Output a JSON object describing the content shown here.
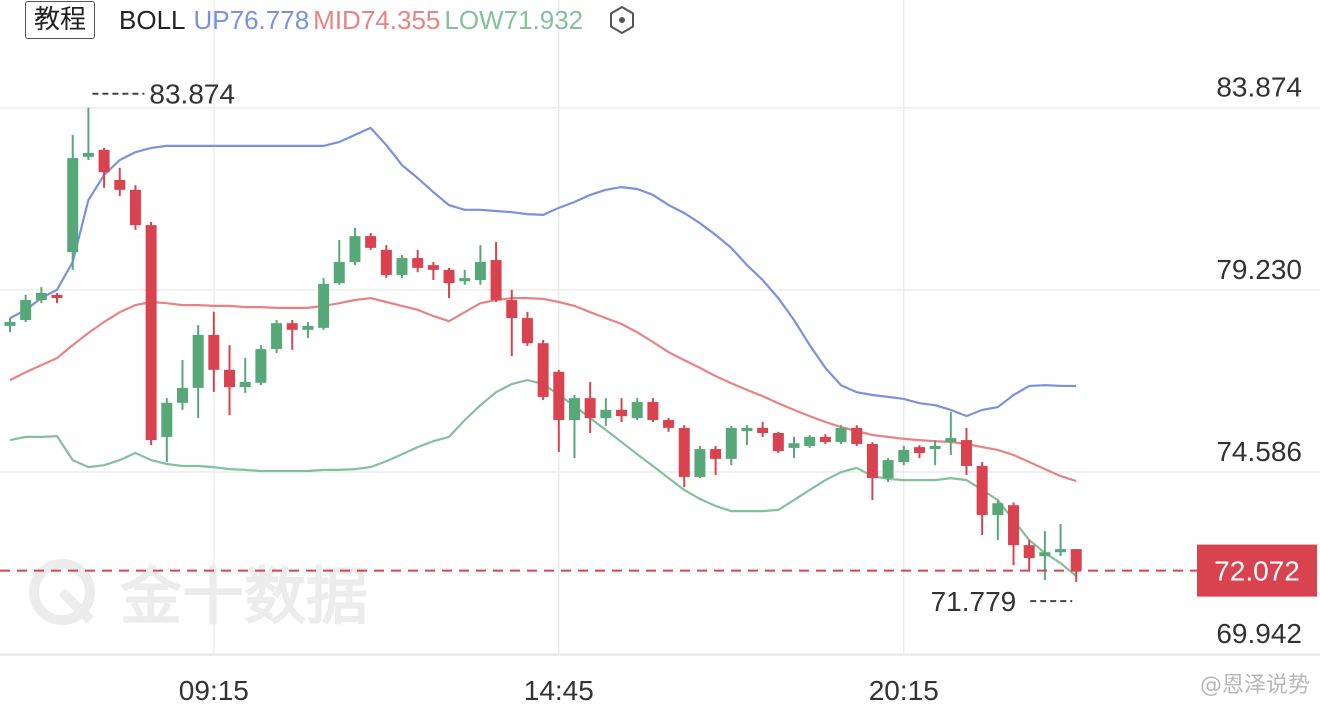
{
  "chart_data": {
    "type": "candlestick",
    "tutorial_button": "教程",
    "indicator": "BOLL",
    "watermark": "金十数据",
    "attribution": "@恩泽说势",
    "categories": [
      null,
      null,
      null,
      null,
      null,
      null,
      null,
      null,
      null,
      null,
      null,
      null,
      null,
      "09:15",
      null,
      null,
      null,
      null,
      null,
      null,
      null,
      null,
      null,
      null,
      null,
      null,
      null,
      null,
      null,
      null,
      null,
      null,
      null,
      null,
      null,
      "14:45",
      null,
      null,
      null,
      null,
      null,
      null,
      null,
      null,
      null,
      null,
      null,
      null,
      null,
      null,
      null,
      null,
      null,
      null,
      null,
      null,
      null,
      "20:15",
      null,
      null,
      null,
      null,
      null,
      null,
      null,
      null,
      null,
      null,
      null
    ],
    "open": [
      78.31,
      78.46,
      78.97,
      79.1,
      80.19,
      82.62,
      82.8,
      82.03,
      81.78,
      80.88,
      75.48,
      76.35,
      76.73,
      78.08,
      77.19,
      76.75,
      76.86,
      77.72,
      78.38,
      78.21,
      78.26,
      79.4,
      79.94,
      80.6,
      80.25,
      79.61,
      80.04,
      79.86,
      79.74,
      79.45,
      79.48,
      79.99,
      78.97,
      78.51,
      77.87,
      77.14,
      75.91,
      76.47,
      75.96,
      76.17,
      75.96,
      76.37,
      75.91,
      75.71,
      74.46,
      75.17,
      74.92,
      75.63,
      75.71,
      75.58,
      75.2,
      75.25,
      75.48,
      75.35,
      75.71,
      75.3,
      74.43,
      74.84,
      75.22,
      75.17,
      75.35,
      75.4,
      74.74,
      73.49,
      73.74,
      72.72,
      72.44,
      72.54,
      72.62
    ],
    "high": [
      78.51,
      79.1,
      79.3,
      79.15,
      83.18,
      83.874,
      82.85,
      82.34,
      81.9,
      80.96,
      76.47,
      77.44,
      78.33,
      78.67,
      77.82,
      77.49,
      77.82,
      78.46,
      78.46,
      78.41,
      79.53,
      80.5,
      80.81,
      80.68,
      80.37,
      80.12,
      80.25,
      79.94,
      79.79,
      79.74,
      80.37,
      80.45,
      79.23,
      78.67,
      77.95,
      77.19,
      76.55,
      76.88,
      76.47,
      76.47,
      76.47,
      76.47,
      75.96,
      75.78,
      75.25,
      75.25,
      75.76,
      75.78,
      75.86,
      75.61,
      75.48,
      75.53,
      75.55,
      75.78,
      75.78,
      75.35,
      74.94,
      75.25,
      75.27,
      75.4,
      76.12,
      75.71,
      74.84,
      73.87,
      73.81,
      72.85,
      73.08,
      73.26,
      72.62
    ],
    "low": [
      78.15,
      78.41,
      78.89,
      78.89,
      79.74,
      82.54,
      81.83,
      81.62,
      80.76,
      75.27,
      74.84,
      76.17,
      75.96,
      76.63,
      76.04,
      76.6,
      76.8,
      77.62,
      77.7,
      78.0,
      78.21,
      79.36,
      79.86,
      80.25,
      79.53,
      79.53,
      79.68,
      79.48,
      79.02,
      79.36,
      79.36,
      78.92,
      77.54,
      77.8,
      76.42,
      75.1,
      74.94,
      75.58,
      75.76,
      75.86,
      75.91,
      75.86,
      75.61,
      74.2,
      74.43,
      74.51,
      74.76,
      75.27,
      75.48,
      75.07,
      74.94,
      75.2,
      75.3,
      75.3,
      75.25,
      73.87,
      74.33,
      74.76,
      74.94,
      74.76,
      75.02,
      74.51,
      72.98,
      72.85,
      72.21,
      72.08,
      71.83,
      72.44,
      71.779
    ],
    "close": [
      78.41,
      78.97,
      79.15,
      79.02,
      82.59,
      82.72,
      82.23,
      81.78,
      80.88,
      75.4,
      76.35,
      76.73,
      78.08,
      77.19,
      76.75,
      76.88,
      77.72,
      78.38,
      78.21,
      78.31,
      79.38,
      79.94,
      80.6,
      80.3,
      79.61,
      80.04,
      79.79,
      79.74,
      79.4,
      79.53,
      79.94,
      78.97,
      78.51,
      77.87,
      76.5,
      75.91,
      76.47,
      75.96,
      76.17,
      76.01,
      76.37,
      75.91,
      75.71,
      74.46,
      75.17,
      74.92,
      75.71,
      75.71,
      75.58,
      75.12,
      75.32,
      75.48,
      75.35,
      75.71,
      75.3,
      74.43,
      74.89,
      75.15,
      75.07,
      75.25,
      75.45,
      74.74,
      73.49,
      73.79,
      72.72,
      72.39,
      72.54,
      72.62,
      72.072
    ],
    "up_color": "#56a878",
    "down_color": "#d9434f",
    "series": [
      {
        "name": "UP",
        "color": "#7a92dc",
        "values": [
          78.51,
          78.72,
          79.02,
          79.23,
          79.94,
          81.52,
          82.16,
          82.54,
          82.74,
          82.85,
          82.9,
          82.9,
          82.9,
          82.9,
          82.9,
          82.9,
          82.9,
          82.9,
          82.9,
          82.9,
          82.9,
          83.0,
          83.18,
          83.36,
          82.92,
          82.41,
          82.08,
          81.72,
          81.39,
          81.27,
          81.27,
          81.24,
          81.21,
          81.16,
          81.14,
          81.32,
          81.47,
          81.65,
          81.78,
          81.85,
          81.8,
          81.65,
          81.39,
          81.19,
          80.93,
          80.63,
          80.3,
          79.86,
          79.48,
          79.02,
          78.46,
          77.82,
          77.24,
          76.8,
          76.62,
          76.55,
          76.5,
          76.45,
          76.34,
          76.29,
          76.17,
          76.01,
          76.17,
          76.24,
          76.55,
          76.78,
          76.8,
          76.78,
          76.778
        ]
      },
      {
        "name": "MID",
        "color": "#e98383",
        "values": [
          76.93,
          77.13,
          77.31,
          77.49,
          77.82,
          78.13,
          78.41,
          78.66,
          78.84,
          78.92,
          78.89,
          78.84,
          78.84,
          78.82,
          78.82,
          78.79,
          78.79,
          78.77,
          78.77,
          78.77,
          78.82,
          78.89,
          78.97,
          79.02,
          78.92,
          78.82,
          78.72,
          78.56,
          78.43,
          78.66,
          78.89,
          78.97,
          79.02,
          79.02,
          79.0,
          78.92,
          78.82,
          78.66,
          78.51,
          78.36,
          78.15,
          77.9,
          77.64,
          77.44,
          77.24,
          77.03,
          76.85,
          76.68,
          76.52,
          76.34,
          76.17,
          76.01,
          75.86,
          75.73,
          75.63,
          75.53,
          75.48,
          75.43,
          75.4,
          75.37,
          75.35,
          75.3,
          75.22,
          75.15,
          75.02,
          74.84,
          74.66,
          74.48,
          74.355
        ]
      },
      {
        "name": "LOW",
        "color": "#82c19c",
        "values": [
          75.4,
          75.48,
          75.48,
          75.5,
          74.89,
          74.71,
          74.76,
          74.89,
          75.07,
          74.89,
          74.79,
          74.74,
          74.74,
          74.71,
          74.66,
          74.64,
          74.61,
          74.61,
          74.61,
          74.61,
          74.64,
          74.64,
          74.66,
          74.71,
          74.86,
          75.04,
          75.22,
          75.37,
          75.48,
          75.91,
          76.29,
          76.62,
          76.83,
          76.93,
          76.83,
          76.55,
          76.27,
          75.96,
          75.66,
          75.35,
          75.04,
          74.74,
          74.43,
          74.13,
          73.9,
          73.72,
          73.59,
          73.59,
          73.59,
          73.62,
          73.87,
          74.13,
          74.38,
          74.58,
          74.69,
          74.48,
          74.41,
          74.38,
          74.38,
          74.38,
          74.43,
          74.38,
          74.13,
          73.87,
          73.36,
          72.85,
          72.52,
          72.26,
          71.932
        ]
      }
    ],
    "ylim": [
      69.92,
      85.6
    ],
    "yticks": [
      83.874,
      {
        "value": 79.23,
        "label": "79.230"
      },
      74.586,
      69.942
    ],
    "grid": true
  }
}
